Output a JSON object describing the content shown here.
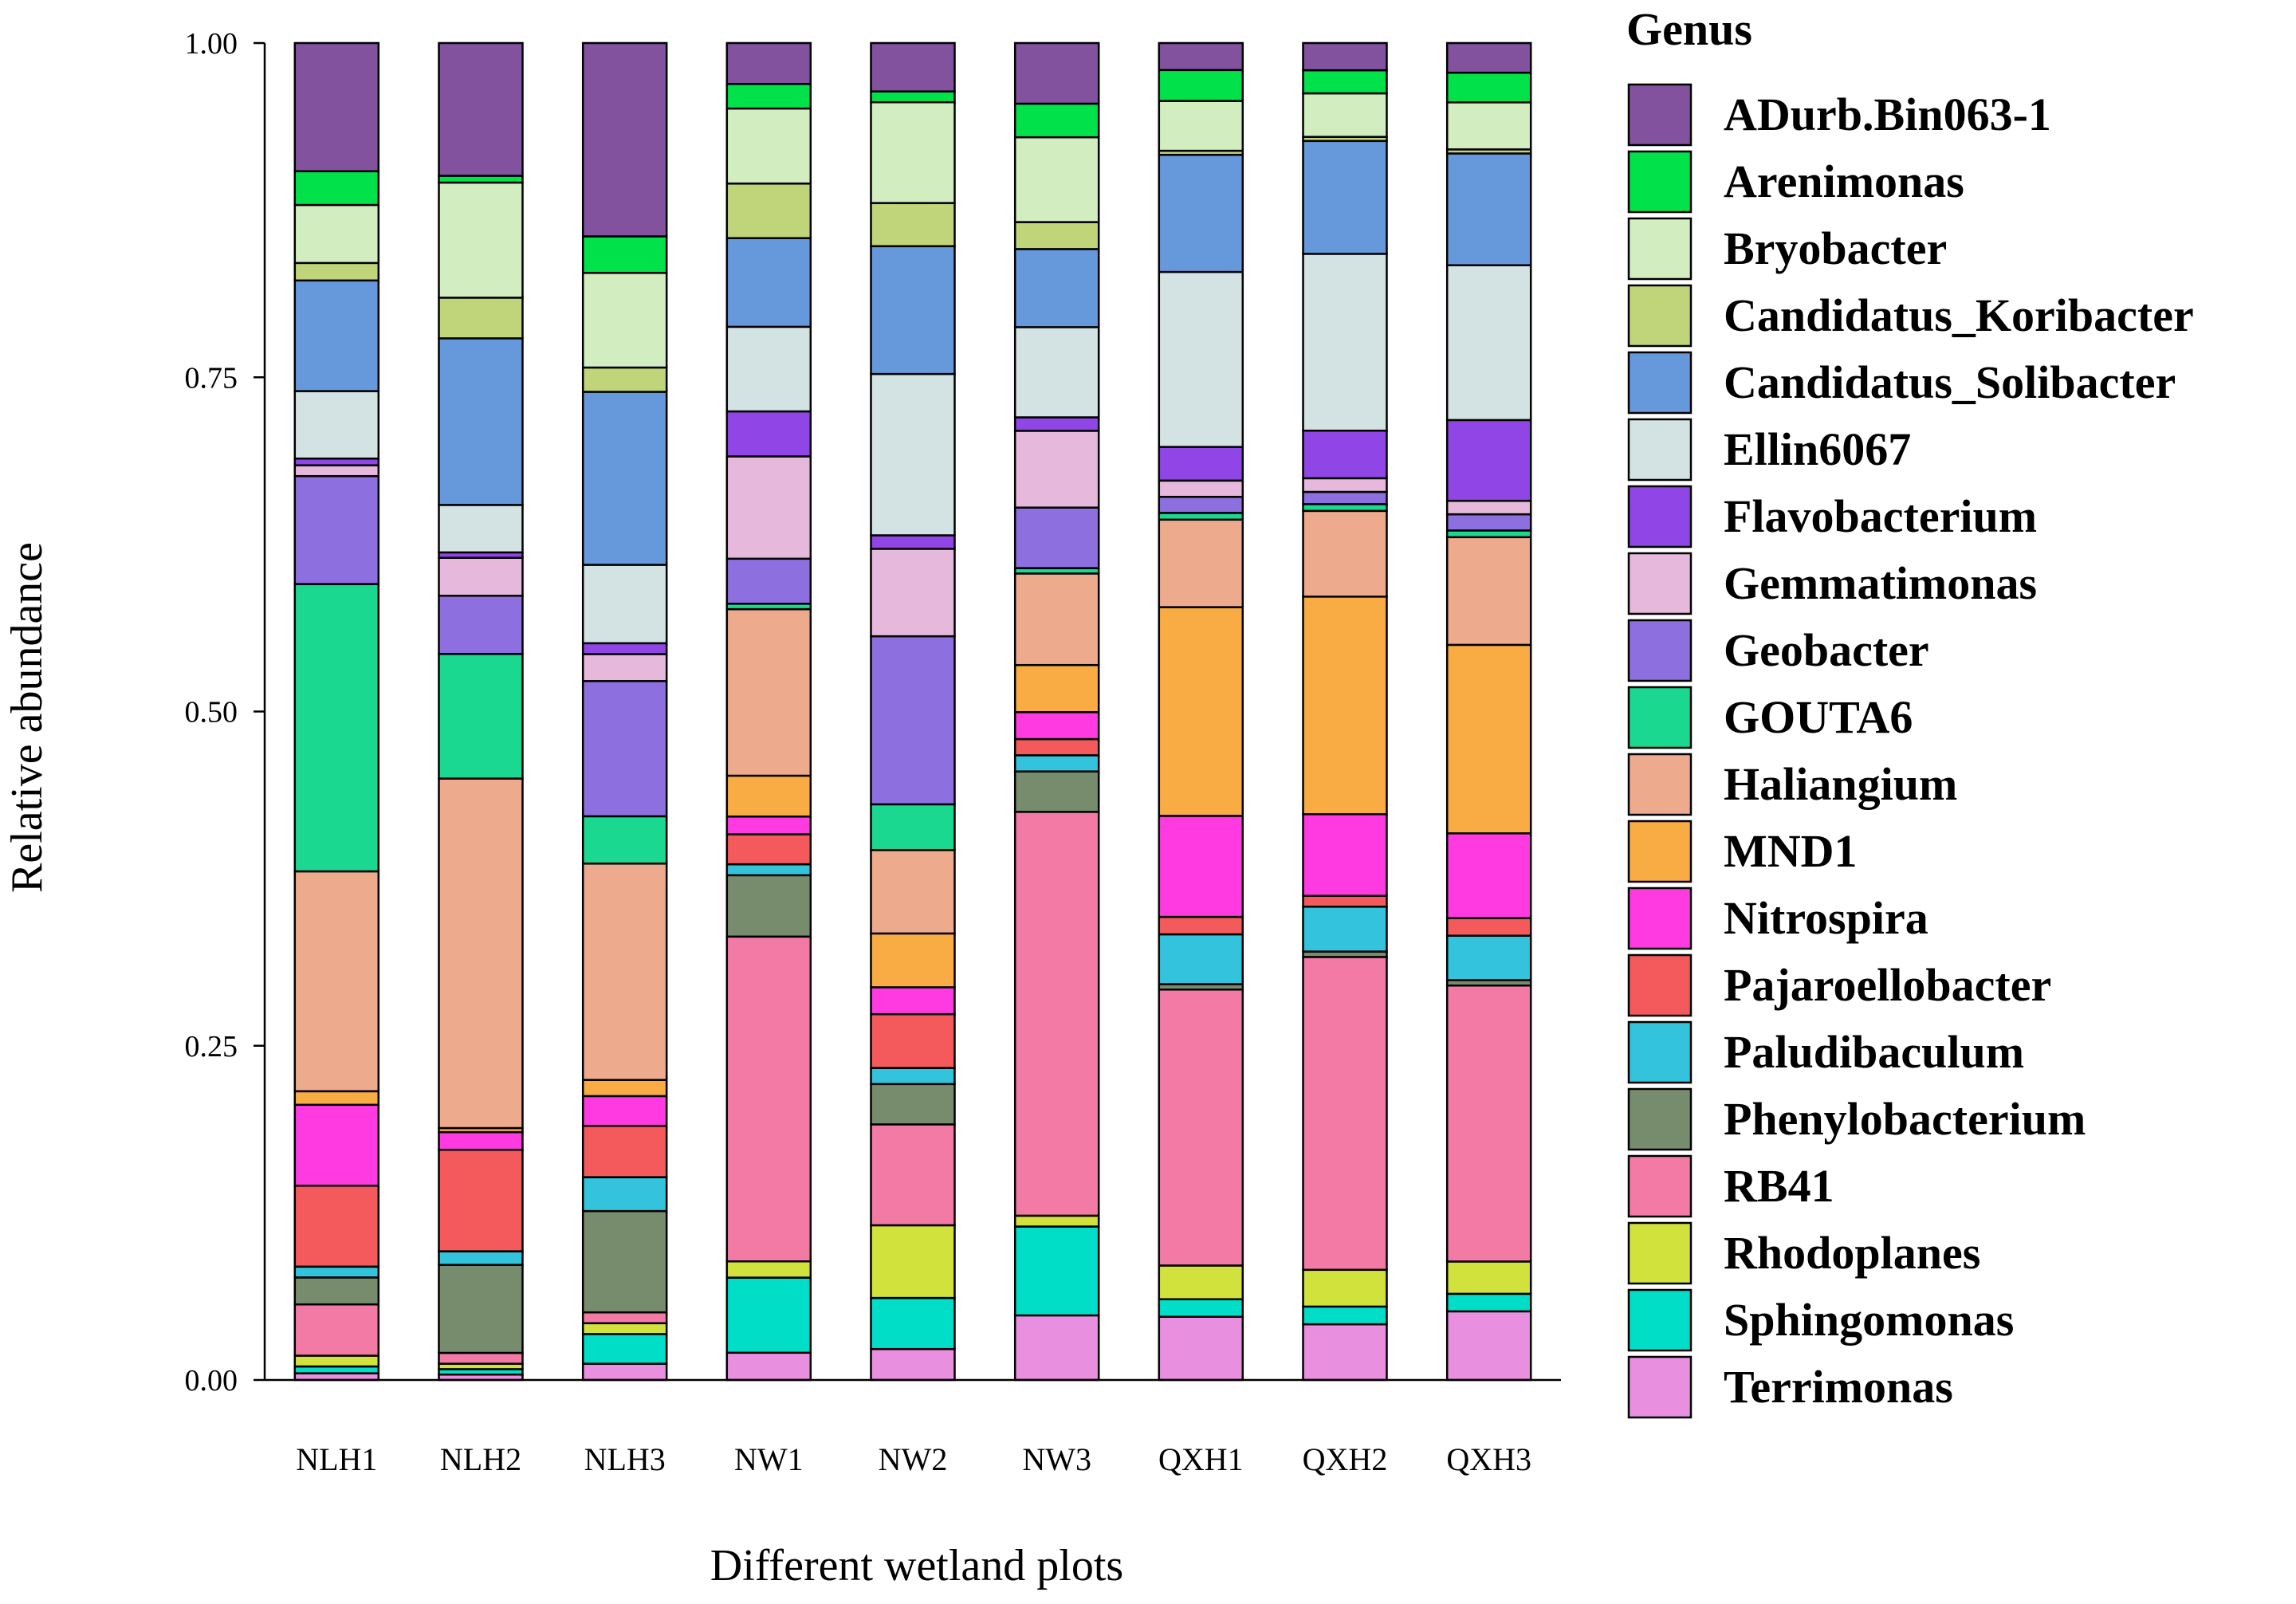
{
  "chart_data": {
    "type": "stacked-bar",
    "title": "",
    "xlabel": "Different wetland plots",
    "ylabel": "Relative abundance",
    "ylim": [
      0,
      1
    ],
    "yticks": [
      "0.00",
      "0.25",
      "0.50",
      "0.75",
      "1.00"
    ],
    "legend_title": "Genus",
    "legend_position": "right",
    "categories": [
      "NLH1",
      "NLH2",
      "NLH3",
      "NW1",
      "NW2",
      "NW3",
      "QXH1",
      "QXH2",
      "QXH3"
    ],
    "series": [
      {
        "name": "Terrimonas",
        "color": "#E88FE0",
        "values": [
          0.005,
          0.004,
          0.012,
          0.02,
          0.023,
          0.048,
          0.047,
          0.041,
          0.051
        ]
      },
      {
        "name": "Sphingomonas",
        "color": "#00DEC8",
        "values": [
          0.005,
          0.004,
          0.022,
          0.055,
          0.038,
          0.066,
          0.013,
          0.013,
          0.013
        ]
      },
      {
        "name": "Rhodoplanes",
        "color": "#D2E23C",
        "values": [
          0.008,
          0.004,
          0.008,
          0.012,
          0.054,
          0.008,
          0.025,
          0.027,
          0.024
        ]
      },
      {
        "name": "RB41",
        "color": "#F47AA6",
        "values": [
          0.038,
          0.008,
          0.008,
          0.238,
          0.075,
          0.3,
          0.205,
          0.23,
          0.205
        ]
      },
      {
        "name": "Phenylobacterium",
        "color": "#778C6C",
        "values": [
          0.02,
          0.065,
          0.075,
          0.045,
          0.03,
          0.03,
          0.004,
          0.004,
          0.004
        ]
      },
      {
        "name": "Paludibaculum",
        "color": "#33C3DC",
        "values": [
          0.008,
          0.01,
          0.025,
          0.008,
          0.012,
          0.012,
          0.037,
          0.033,
          0.033
        ]
      },
      {
        "name": "Pajaroellobacter",
        "color": "#F45A5C",
        "values": [
          0.06,
          0.075,
          0.038,
          0.022,
          0.04,
          0.012,
          0.013,
          0.008,
          0.013
        ]
      },
      {
        "name": "Nitrospira",
        "color": "#FF3AE0",
        "values": [
          0.06,
          0.013,
          0.022,
          0.013,
          0.02,
          0.02,
          0.075,
          0.06,
          0.063
        ]
      },
      {
        "name": "MND1",
        "color": "#F9AC44",
        "values": [
          0.01,
          0.003,
          0.012,
          0.03,
          0.04,
          0.035,
          0.155,
          0.16,
          0.14
        ]
      },
      {
        "name": "Haliangium",
        "color": "#EEAA8C",
        "values": [
          0.163,
          0.258,
          0.16,
          0.122,
          0.062,
          0.068,
          0.065,
          0.063,
          0.08
        ]
      },
      {
        "name": "GOUTA6",
        "color": "#1BD890",
        "values": [
          0.213,
          0.092,
          0.035,
          0.004,
          0.034,
          0.004,
          0.005,
          0.005,
          0.005
        ]
      },
      {
        "name": "Geobacter",
        "color": "#8E6FE0",
        "values": [
          0.08,
          0.043,
          0.1,
          0.033,
          0.125,
          0.045,
          0.012,
          0.009,
          0.012
        ]
      },
      {
        "name": "Gemmatimonas",
        "color": "#E6B8DC",
        "values": [
          0.008,
          0.028,
          0.02,
          0.075,
          0.065,
          0.057,
          0.012,
          0.01,
          0.01
        ]
      },
      {
        "name": "Flavobacterium",
        "color": "#9045E6",
        "values": [
          0.005,
          0.004,
          0.008,
          0.033,
          0.01,
          0.01,
          0.025,
          0.035,
          0.06
        ]
      },
      {
        "name": "Ellin6067",
        "color": "#D3E2E2",
        "values": [
          0.05,
          0.035,
          0.058,
          0.062,
          0.12,
          0.067,
          0.13,
          0.13,
          0.115
        ]
      },
      {
        "name": "Candidatus_Solibacter",
        "color": "#6699DC",
        "values": [
          0.082,
          0.123,
          0.128,
          0.065,
          0.095,
          0.058,
          0.087,
          0.083,
          0.083
        ]
      },
      {
        "name": "Candidatus_Koribacter",
        "color": "#C0D47A",
        "values": [
          0.013,
          0.03,
          0.018,
          0.04,
          0.032,
          0.02,
          0.003,
          0.003,
          0.003
        ]
      },
      {
        "name": "Bryobacter",
        "color": "#D2EDC0",
        "values": [
          0.043,
          0.085,
          0.07,
          0.055,
          0.075,
          0.063,
          0.037,
          0.032,
          0.035
        ]
      },
      {
        "name": "Arenimonas",
        "color": "#00E14A",
        "values": [
          0.025,
          0.005,
          0.027,
          0.018,
          0.008,
          0.025,
          0.023,
          0.017,
          0.022
        ]
      },
      {
        "name": "ADurb.Bin063-1",
        "color": "#82529E",
        "values": [
          0.095,
          0.098,
          0.143,
          0.03,
          0.036,
          0.045,
          0.02,
          0.02,
          0.022
        ]
      }
    ]
  }
}
